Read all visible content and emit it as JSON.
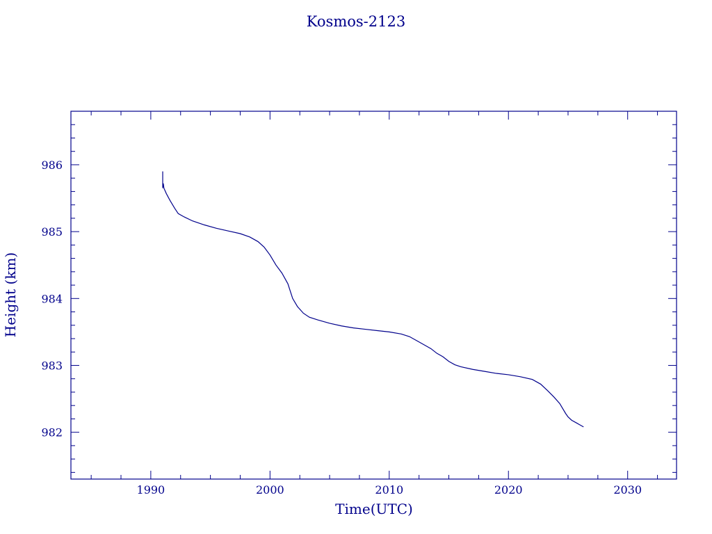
{
  "chart_data": {
    "type": "line",
    "title": "Kosmos-2123",
    "xlabel": "Time(UTC)",
    "ylabel": "Height (km)",
    "xlim": [
      1983.3,
      2034.1
    ],
    "ylim": [
      981.3,
      986.8
    ],
    "xticks": [
      1990,
      2000,
      2010,
      2020,
      2030
    ],
    "xtick_labels": [
      "1990",
      "2000",
      "2010",
      "2020",
      "2030"
    ],
    "xminor_step": 2.5,
    "yticks": [
      982,
      983,
      984,
      985,
      986
    ],
    "ytick_labels": [
      "982",
      "983",
      "984",
      "985",
      "986"
    ],
    "yminor_step": 0.2,
    "grid": false,
    "color": "#00008b",
    "series": [
      {
        "x": [
          1991.0,
          1991.0,
          1991.05,
          1991.1,
          1991.3,
          1991.6,
          1992.0,
          1992.3,
          1992.8,
          1993.5,
          1994.5,
          1995.5,
          1996.5,
          1997.5,
          1998.3,
          1999.0,
          1999.5,
          2000.0,
          2000.5,
          2001.0,
          2001.5,
          2001.9,
          2002.3,
          2002.8,
          2003.3,
          2004.0,
          2005.0,
          2006.0,
          2007.0,
          2008.0,
          2009.0,
          2010.0,
          2011.0,
          2011.7,
          2012.3,
          2013.0,
          2013.5,
          2014.0,
          2014.5,
          2015.0,
          2015.5,
          2016.0,
          2017.0,
          2018.0,
          2019.0,
          2020.0,
          2021.0,
          2022.0,
          2022.7,
          2023.3,
          2023.8,
          2024.3,
          2024.8,
          2025.0,
          2025.3,
          2025.7,
          2026.0,
          2026.3
        ],
        "y": [
          985.9,
          985.65,
          985.72,
          985.65,
          985.57,
          985.47,
          985.35,
          985.27,
          985.22,
          985.16,
          985.1,
          985.05,
          985.01,
          984.97,
          984.92,
          984.85,
          984.77,
          984.65,
          984.5,
          984.38,
          984.22,
          984.0,
          983.88,
          983.78,
          983.72,
          983.68,
          983.63,
          983.59,
          983.56,
          983.54,
          983.52,
          983.5,
          983.47,
          983.43,
          983.37,
          983.3,
          983.25,
          983.18,
          983.13,
          983.06,
          983.01,
          982.98,
          982.94,
          982.91,
          982.88,
          982.86,
          982.83,
          982.79,
          982.72,
          982.62,
          982.53,
          982.43,
          982.28,
          982.23,
          982.18,
          982.14,
          982.11,
          982.08
        ]
      }
    ]
  }
}
